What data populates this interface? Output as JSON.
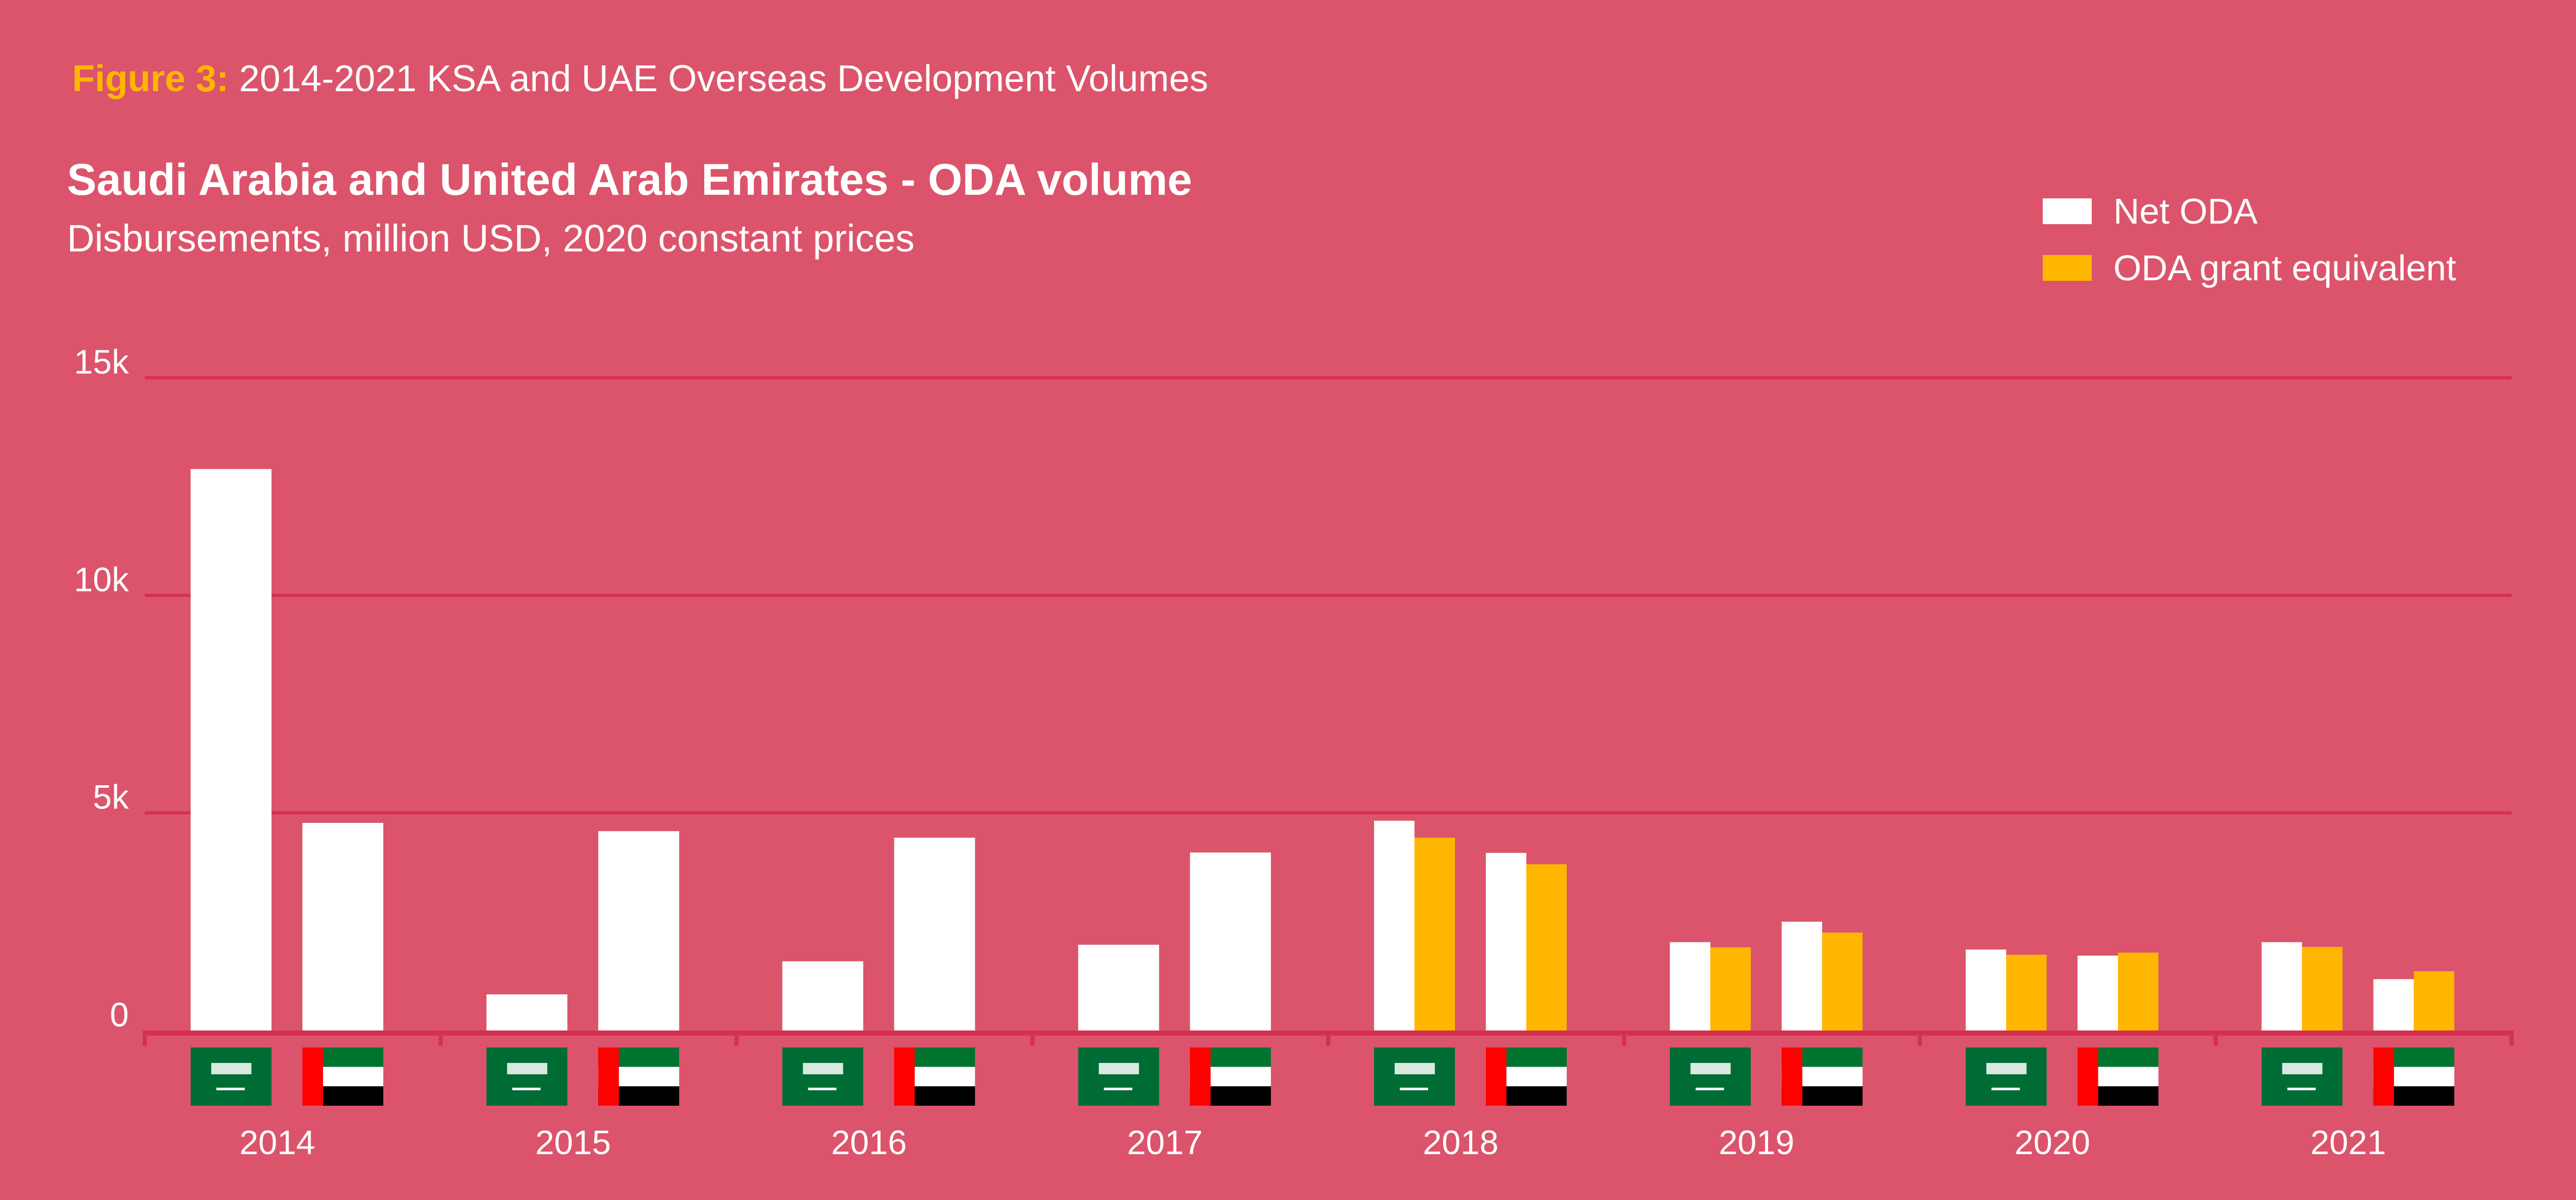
{
  "figure_label": "Figure 3:",
  "figure_caption": "2014-2021 KSA and UAE Overseas Development Volumes",
  "colors": {
    "background": "#DB546B",
    "grid": "#D5304F",
    "net_oda": "#FFFFFF",
    "grant_equivalent": "#FFB600"
  },
  "chart_data": {
    "type": "bar",
    "title": "Saudi Arabia and United Arab Emirates - ODA volume",
    "subtitle": "Disbursements, million USD, 2020 constant prices",
    "xlabel": "",
    "ylabel": "",
    "ylim": [
      0,
      15000
    ],
    "yticks": [
      {
        "value": 0,
        "label": "0"
      },
      {
        "value": 5000,
        "label": "5k"
      },
      {
        "value": 10000,
        "label": "10k"
      },
      {
        "value": 15000,
        "label": "15k"
      }
    ],
    "grid": true,
    "legend_position": "top-right",
    "categories": [
      "2014",
      "2015",
      "2016",
      "2017",
      "2018",
      "2019",
      "2020",
      "2021"
    ],
    "countries": [
      {
        "name": "Saudi Arabia",
        "flag": "saudi-flag-icon"
      },
      {
        "name": "United Arab Emirates",
        "flag": "uae-flag-icon"
      }
    ],
    "series": [
      {
        "name": "Net ODA",
        "color": "#FFFFFF",
        "KSA": [
          12900,
          830,
          1590,
          1970,
          4820,
          2030,
          1860,
          2030
        ],
        "UAE": [
          4770,
          4580,
          4430,
          4090,
          4080,
          2500,
          1720,
          1180
        ]
      },
      {
        "name": "ODA grant equivalent",
        "color": "#FFB600",
        "KSA": [
          null,
          null,
          null,
          null,
          4430,
          1910,
          1740,
          1920
        ],
        "UAE": [
          null,
          null,
          null,
          null,
          3820,
          2250,
          1790,
          1360
        ]
      }
    ]
  }
}
